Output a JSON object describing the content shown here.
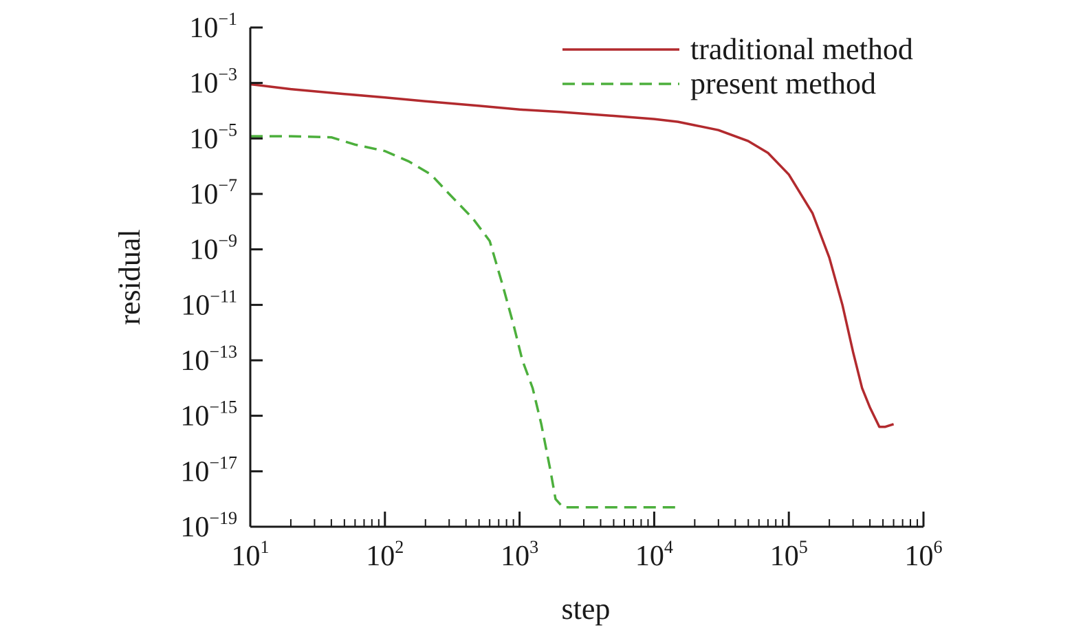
{
  "chart_data": {
    "type": "line",
    "xscale": "log",
    "yscale": "log",
    "xlim": [
      10,
      1000000
    ],
    "ylim": [
      1e-19,
      0.1
    ],
    "xlabel": "step",
    "ylabel": "residual",
    "grid": false,
    "legend_position": "top-right",
    "x_ticks": [
      {
        "base": "10",
        "exp": "1",
        "value": 10
      },
      {
        "base": "10",
        "exp": "2",
        "value": 100
      },
      {
        "base": "10",
        "exp": "3",
        "value": 1000
      },
      {
        "base": "10",
        "exp": "4",
        "value": 10000
      },
      {
        "base": "10",
        "exp": "5",
        "value": 100000
      },
      {
        "base": "10",
        "exp": "6",
        "value": 1000000
      }
    ],
    "y_ticks": [
      {
        "base": "10",
        "exp": "−1",
        "value": 0.1
      },
      {
        "base": "10",
        "exp": "−3",
        "value": 0.001
      },
      {
        "base": "10",
        "exp": "−5",
        "value": 1e-05
      },
      {
        "base": "10",
        "exp": "−7",
        "value": 1e-07
      },
      {
        "base": "10",
        "exp": "−9",
        "value": 1e-09
      },
      {
        "base": "10",
        "exp": "−11",
        "value": 1e-11
      },
      {
        "base": "10",
        "exp": "−13",
        "value": 1e-13
      },
      {
        "base": "10",
        "exp": "−15",
        "value": 1e-15
      },
      {
        "base": "10",
        "exp": "−17",
        "value": 1e-17
      },
      {
        "base": "10",
        "exp": "−19",
        "value": 1e-19
      }
    ],
    "series": [
      {
        "name": "traditional method",
        "color": "#b22a2e",
        "style": "solid",
        "points": [
          [
            10,
            0.0009
          ],
          [
            20,
            0.0006
          ],
          [
            50,
            0.0004
          ],
          [
            100,
            0.0003
          ],
          [
            200,
            0.00022
          ],
          [
            500,
            0.00015
          ],
          [
            1000,
            0.00011
          ],
          [
            2000,
            9e-05
          ],
          [
            5000,
            6.5e-05
          ],
          [
            10000,
            5e-05
          ],
          [
            15000,
            4e-05
          ],
          [
            20000,
            3e-05
          ],
          [
            30000,
            2e-05
          ],
          [
            50000,
            8e-06
          ],
          [
            70000,
            3e-06
          ],
          [
            100000,
            5e-07
          ],
          [
            150000,
            2e-08
          ],
          [
            200000,
            5e-10
          ],
          [
            250000,
            1e-11
          ],
          [
            300000,
            2e-13
          ],
          [
            350000,
            1e-14
          ],
          [
            400000,
            2e-15
          ],
          [
            470000,
            4e-16
          ],
          [
            520000,
            4e-16
          ],
          [
            600000,
            5e-16
          ]
        ]
      },
      {
        "name": "present method",
        "color": "#4caf3c",
        "style": "dashed",
        "points": [
          [
            10,
            1.2e-05
          ],
          [
            20,
            1.2e-05
          ],
          [
            40,
            1.1e-05
          ],
          [
            60,
            6e-06
          ],
          [
            100,
            3.5e-06
          ],
          [
            150,
            1.5e-06
          ],
          [
            220,
            5e-07
          ],
          [
            300,
            1e-07
          ],
          [
            450,
            1.3e-08
          ],
          [
            600,
            2e-09
          ],
          [
            750,
            5e-11
          ],
          [
            900,
            2e-12
          ],
          [
            1050,
            1e-13
          ],
          [
            1250,
            1e-14
          ],
          [
            1450,
            5e-16
          ],
          [
            1700,
            1e-17
          ],
          [
            1850,
            1e-18
          ],
          [
            2100,
            5e-19
          ],
          [
            5000,
            5e-19
          ],
          [
            15000,
            5e-19
          ]
        ]
      }
    ]
  }
}
